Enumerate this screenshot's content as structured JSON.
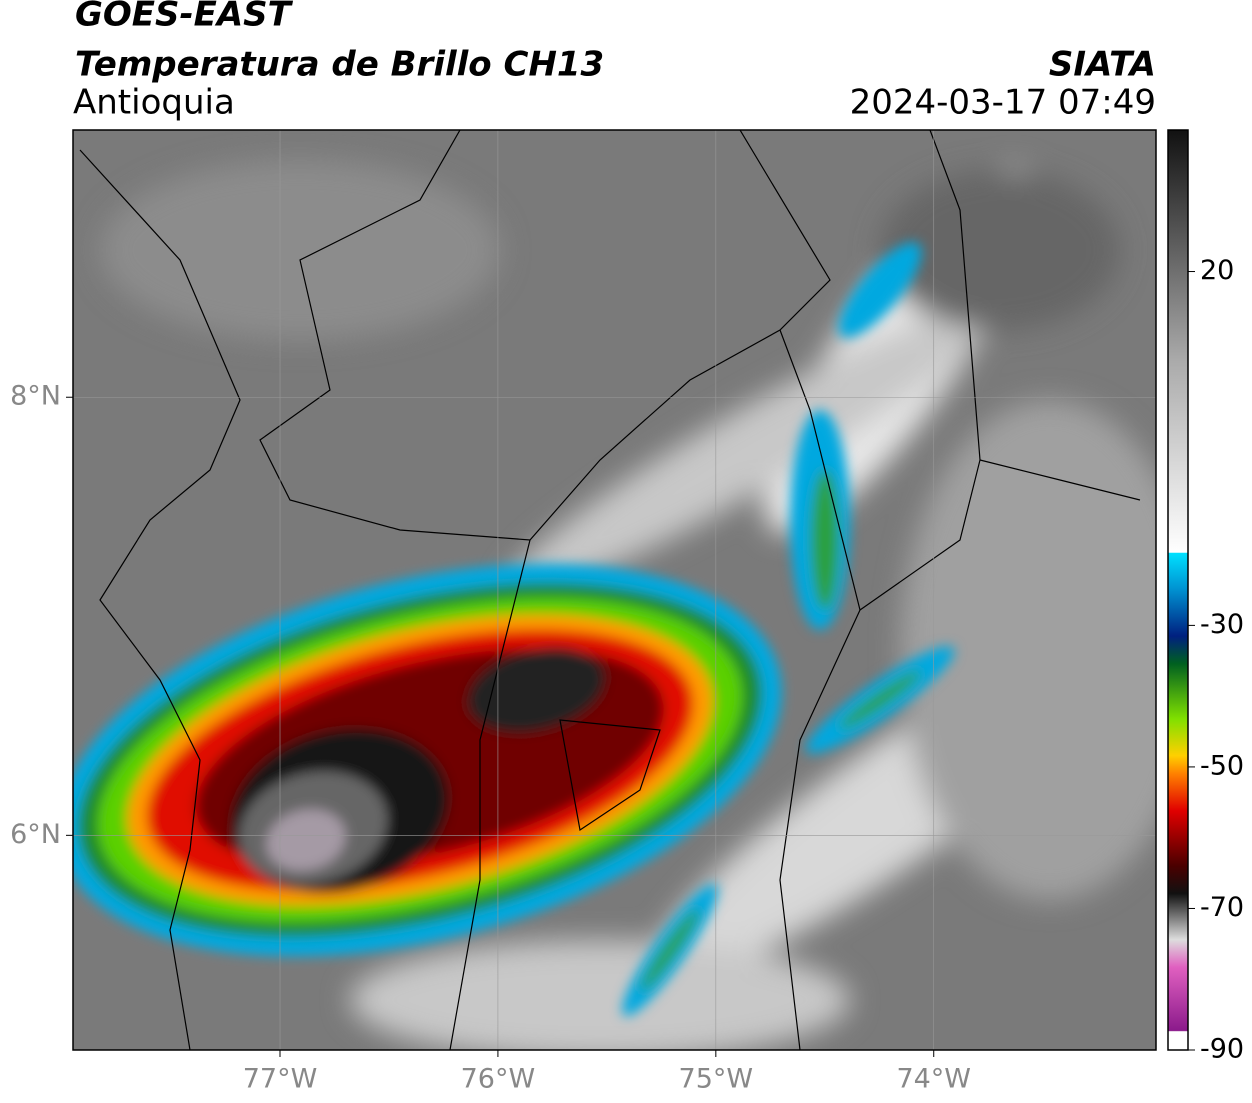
{
  "header": {
    "title": "GOES-EAST",
    "subtitle": "Temperatura de Brillo CH13",
    "region": "Antioquia",
    "source": "SIATA",
    "datetime": "2024-03-17 07:49"
  },
  "map": {
    "xlim": [
      -77.95,
      -72.98
    ],
    "ylim": [
      5.02,
      9.22
    ],
    "xticks": [
      {
        "value": -77,
        "label": "77°W"
      },
      {
        "value": -76,
        "label": "76°W"
      },
      {
        "value": -75,
        "label": "75°W"
      },
      {
        "value": -74,
        "label": "74°W"
      }
    ],
    "yticks": [
      {
        "value": 8,
        "label": "8°N"
      },
      {
        "value": 6,
        "label": "6°N"
      }
    ],
    "grid": true
  },
  "colorbar": {
    "lim": [
      -90,
      40
    ],
    "ticks": [
      20,
      -30,
      -50,
      -70,
      -90
    ]
  }
}
